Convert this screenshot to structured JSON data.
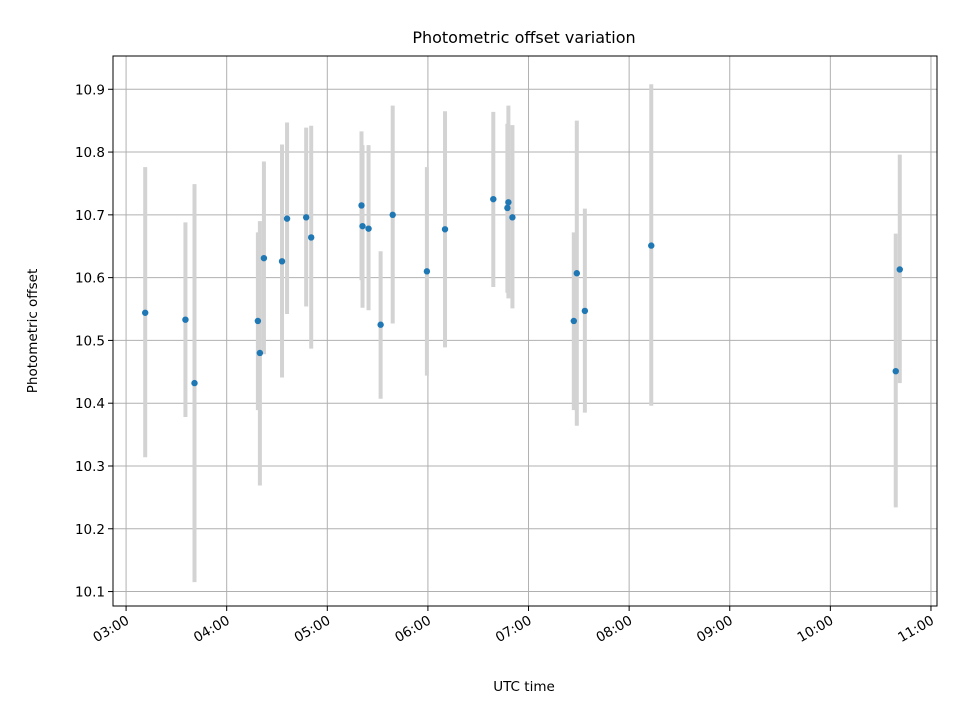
{
  "chart_data": {
    "type": "scatter",
    "title": "Photometric offset variation",
    "xlabel": "UTC time",
    "ylabel": "Photometric offset",
    "x_unit": "hours UTC",
    "xlim": [
      2.87,
      11.06
    ],
    "ylim": [
      10.077,
      10.953
    ],
    "x_ticks": [
      {
        "value": 3,
        "label": "03:00"
      },
      {
        "value": 4,
        "label": "04:00"
      },
      {
        "value": 5,
        "label": "05:00"
      },
      {
        "value": 6,
        "label": "06:00"
      },
      {
        "value": 7,
        "label": "07:00"
      },
      {
        "value": 8,
        "label": "08:00"
      },
      {
        "value": 9,
        "label": "09:00"
      },
      {
        "value": 10,
        "label": "10:00"
      },
      {
        "value": 11,
        "label": "11:00"
      }
    ],
    "y_ticks": [
      {
        "value": 10.1,
        "label": "10.1"
      },
      {
        "value": 10.2,
        "label": "10.2"
      },
      {
        "value": 10.3,
        "label": "10.3"
      },
      {
        "value": 10.4,
        "label": "10.4"
      },
      {
        "value": 10.5,
        "label": "10.5"
      },
      {
        "value": 10.6,
        "label": "10.6"
      },
      {
        "value": 10.7,
        "label": "10.7"
      },
      {
        "value": 10.8,
        "label": "10.8"
      },
      {
        "value": 10.9,
        "label": "10.9"
      }
    ],
    "grid": true,
    "colors": {
      "point": "#1f77b4",
      "error_bar": "#d3d3d3",
      "grid": "#b0b0b0"
    },
    "points": [
      {
        "x": 3.19,
        "y": 10.544,
        "ylow": 10.314,
        "yhigh": 10.776
      },
      {
        "x": 3.59,
        "y": 10.533,
        "ylow": 10.378,
        "yhigh": 10.688
      },
      {
        "x": 3.68,
        "y": 10.432,
        "ylow": 10.115,
        "yhigh": 10.749
      },
      {
        "x": 4.31,
        "y": 10.531,
        "ylow": 10.389,
        "yhigh": 10.672
      },
      {
        "x": 4.33,
        "y": 10.48,
        "ylow": 10.269,
        "yhigh": 10.69
      },
      {
        "x": 4.37,
        "y": 10.631,
        "ylow": 10.478,
        "yhigh": 10.785
      },
      {
        "x": 4.55,
        "y": 10.626,
        "ylow": 10.441,
        "yhigh": 10.812
      },
      {
        "x": 4.6,
        "y": 10.694,
        "ylow": 10.542,
        "yhigh": 10.847
      },
      {
        "x": 4.79,
        "y": 10.696,
        "ylow": 10.554,
        "yhigh": 10.839
      },
      {
        "x": 4.84,
        "y": 10.664,
        "ylow": 10.487,
        "yhigh": 10.842
      },
      {
        "x": 5.34,
        "y": 10.715,
        "ylow": 10.596,
        "yhigh": 10.833
      },
      {
        "x": 5.35,
        "y": 10.682,
        "ylow": 10.552,
        "yhigh": 10.811
      },
      {
        "x": 5.41,
        "y": 10.678,
        "ylow": 10.548,
        "yhigh": 10.811
      },
      {
        "x": 5.53,
        "y": 10.525,
        "ylow": 10.407,
        "yhigh": 10.642
      },
      {
        "x": 5.65,
        "y": 10.7,
        "ylow": 10.527,
        "yhigh": 10.874
      },
      {
        "x": 5.99,
        "y": 10.61,
        "ylow": 10.444,
        "yhigh": 10.776
      },
      {
        "x": 6.17,
        "y": 10.677,
        "ylow": 10.489,
        "yhigh": 10.865
      },
      {
        "x": 6.65,
        "y": 10.725,
        "ylow": 10.585,
        "yhigh": 10.864
      },
      {
        "x": 6.79,
        "y": 10.711,
        "ylow": 10.576,
        "yhigh": 10.845
      },
      {
        "x": 6.8,
        "y": 10.72,
        "ylow": 10.567,
        "yhigh": 10.874
      },
      {
        "x": 6.84,
        "y": 10.696,
        "ylow": 10.551,
        "yhigh": 10.843
      },
      {
        "x": 7.45,
        "y": 10.531,
        "ylow": 10.389,
        "yhigh": 10.672
      },
      {
        "x": 7.48,
        "y": 10.607,
        "ylow": 10.364,
        "yhigh": 10.85
      },
      {
        "x": 7.56,
        "y": 10.547,
        "ylow": 10.385,
        "yhigh": 10.71
      },
      {
        "x": 8.22,
        "y": 10.651,
        "ylow": 10.396,
        "yhigh": 10.908
      },
      {
        "x": 10.65,
        "y": 10.451,
        "ylow": 10.234,
        "yhigh": 10.67
      },
      {
        "x": 10.69,
        "y": 10.613,
        "ylow": 10.432,
        "yhigh": 10.796
      }
    ]
  }
}
